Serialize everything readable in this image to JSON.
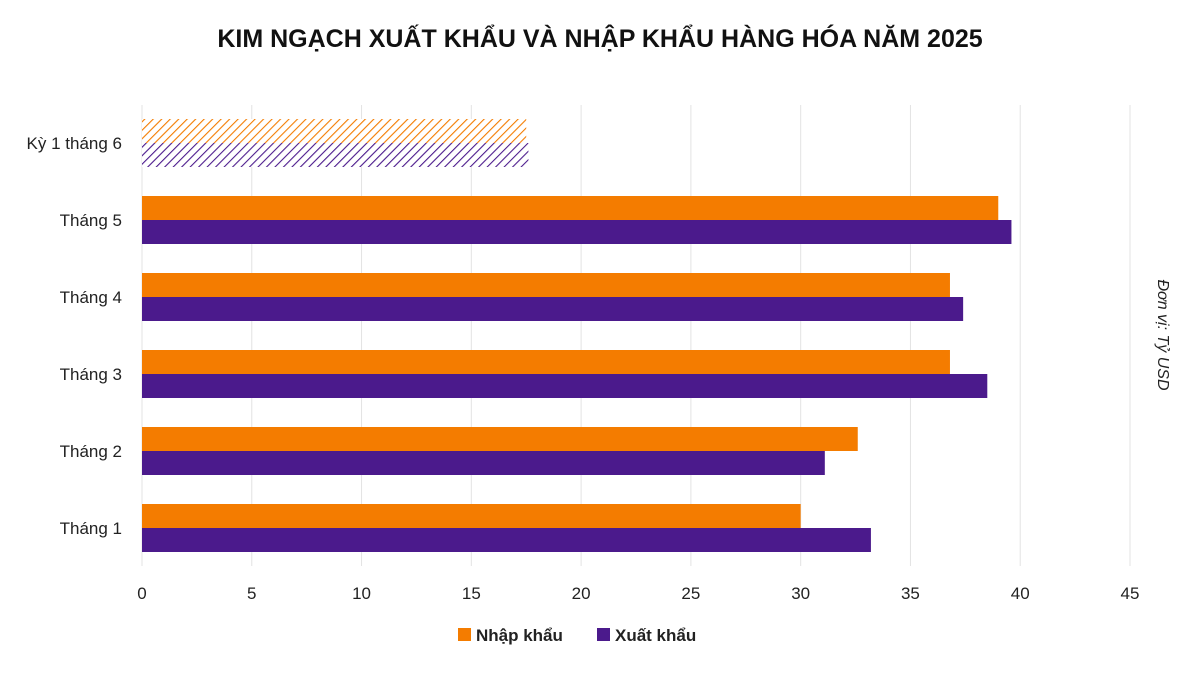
{
  "chart_data": {
    "type": "bar",
    "orientation": "horizontal",
    "title": "KIM NGẠCH XUẤT KHẨU VÀ NHẬP KHẨU HÀNG HÓA NĂM 2025",
    "unit_label": "Đơn vị: Tỷ USD",
    "categories": [
      "Kỳ 1 tháng 6",
      "Tháng 5",
      "Tháng 4",
      "Tháng 3",
      "Tháng 2",
      "Tháng 1"
    ],
    "series": [
      {
        "name": "Nhập khẩu",
        "color": "#F47C00",
        "values": [
          17.5,
          39.0,
          36.8,
          36.8,
          32.6,
          30.0
        ]
      },
      {
        "name": "Xuất khẩu",
        "color": "#4B1A8C",
        "values": [
          17.6,
          39.6,
          37.4,
          38.5,
          31.1,
          33.2
        ]
      }
    ],
    "hatched_categories": [
      "Kỳ 1 tháng 6"
    ],
    "xlim": [
      0,
      45
    ],
    "xticks": [
      0,
      5,
      10,
      15,
      20,
      25,
      30,
      35,
      40,
      45
    ],
    "xtick_labels": [
      "0",
      "5",
      "10",
      "15",
      "20",
      "25",
      "30",
      "35",
      "40",
      "45"
    ],
    "grid": true,
    "legend_position": "bottom-center"
  }
}
